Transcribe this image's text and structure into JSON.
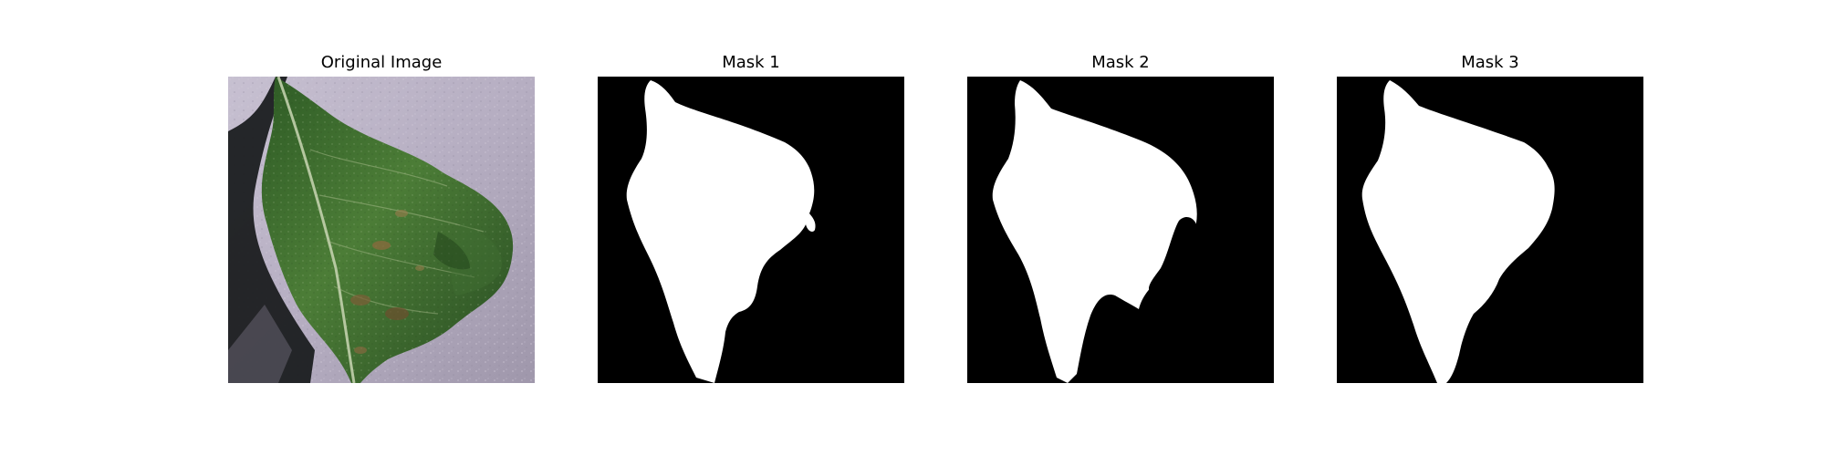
{
  "panels": [
    {
      "title": "Original Image"
    },
    {
      "title": "Mask 1"
    },
    {
      "title": "Mask 2"
    },
    {
      "title": "Mask 3"
    }
  ],
  "colors": {
    "background": "#ffffff",
    "mask_background": "#000000",
    "mask_foreground": "#ffffff",
    "leaf_dark": "#2f5a24",
    "leaf_mid": "#4f7d3a",
    "surface": "#b7afc4",
    "shadow": "#1b1d20"
  }
}
